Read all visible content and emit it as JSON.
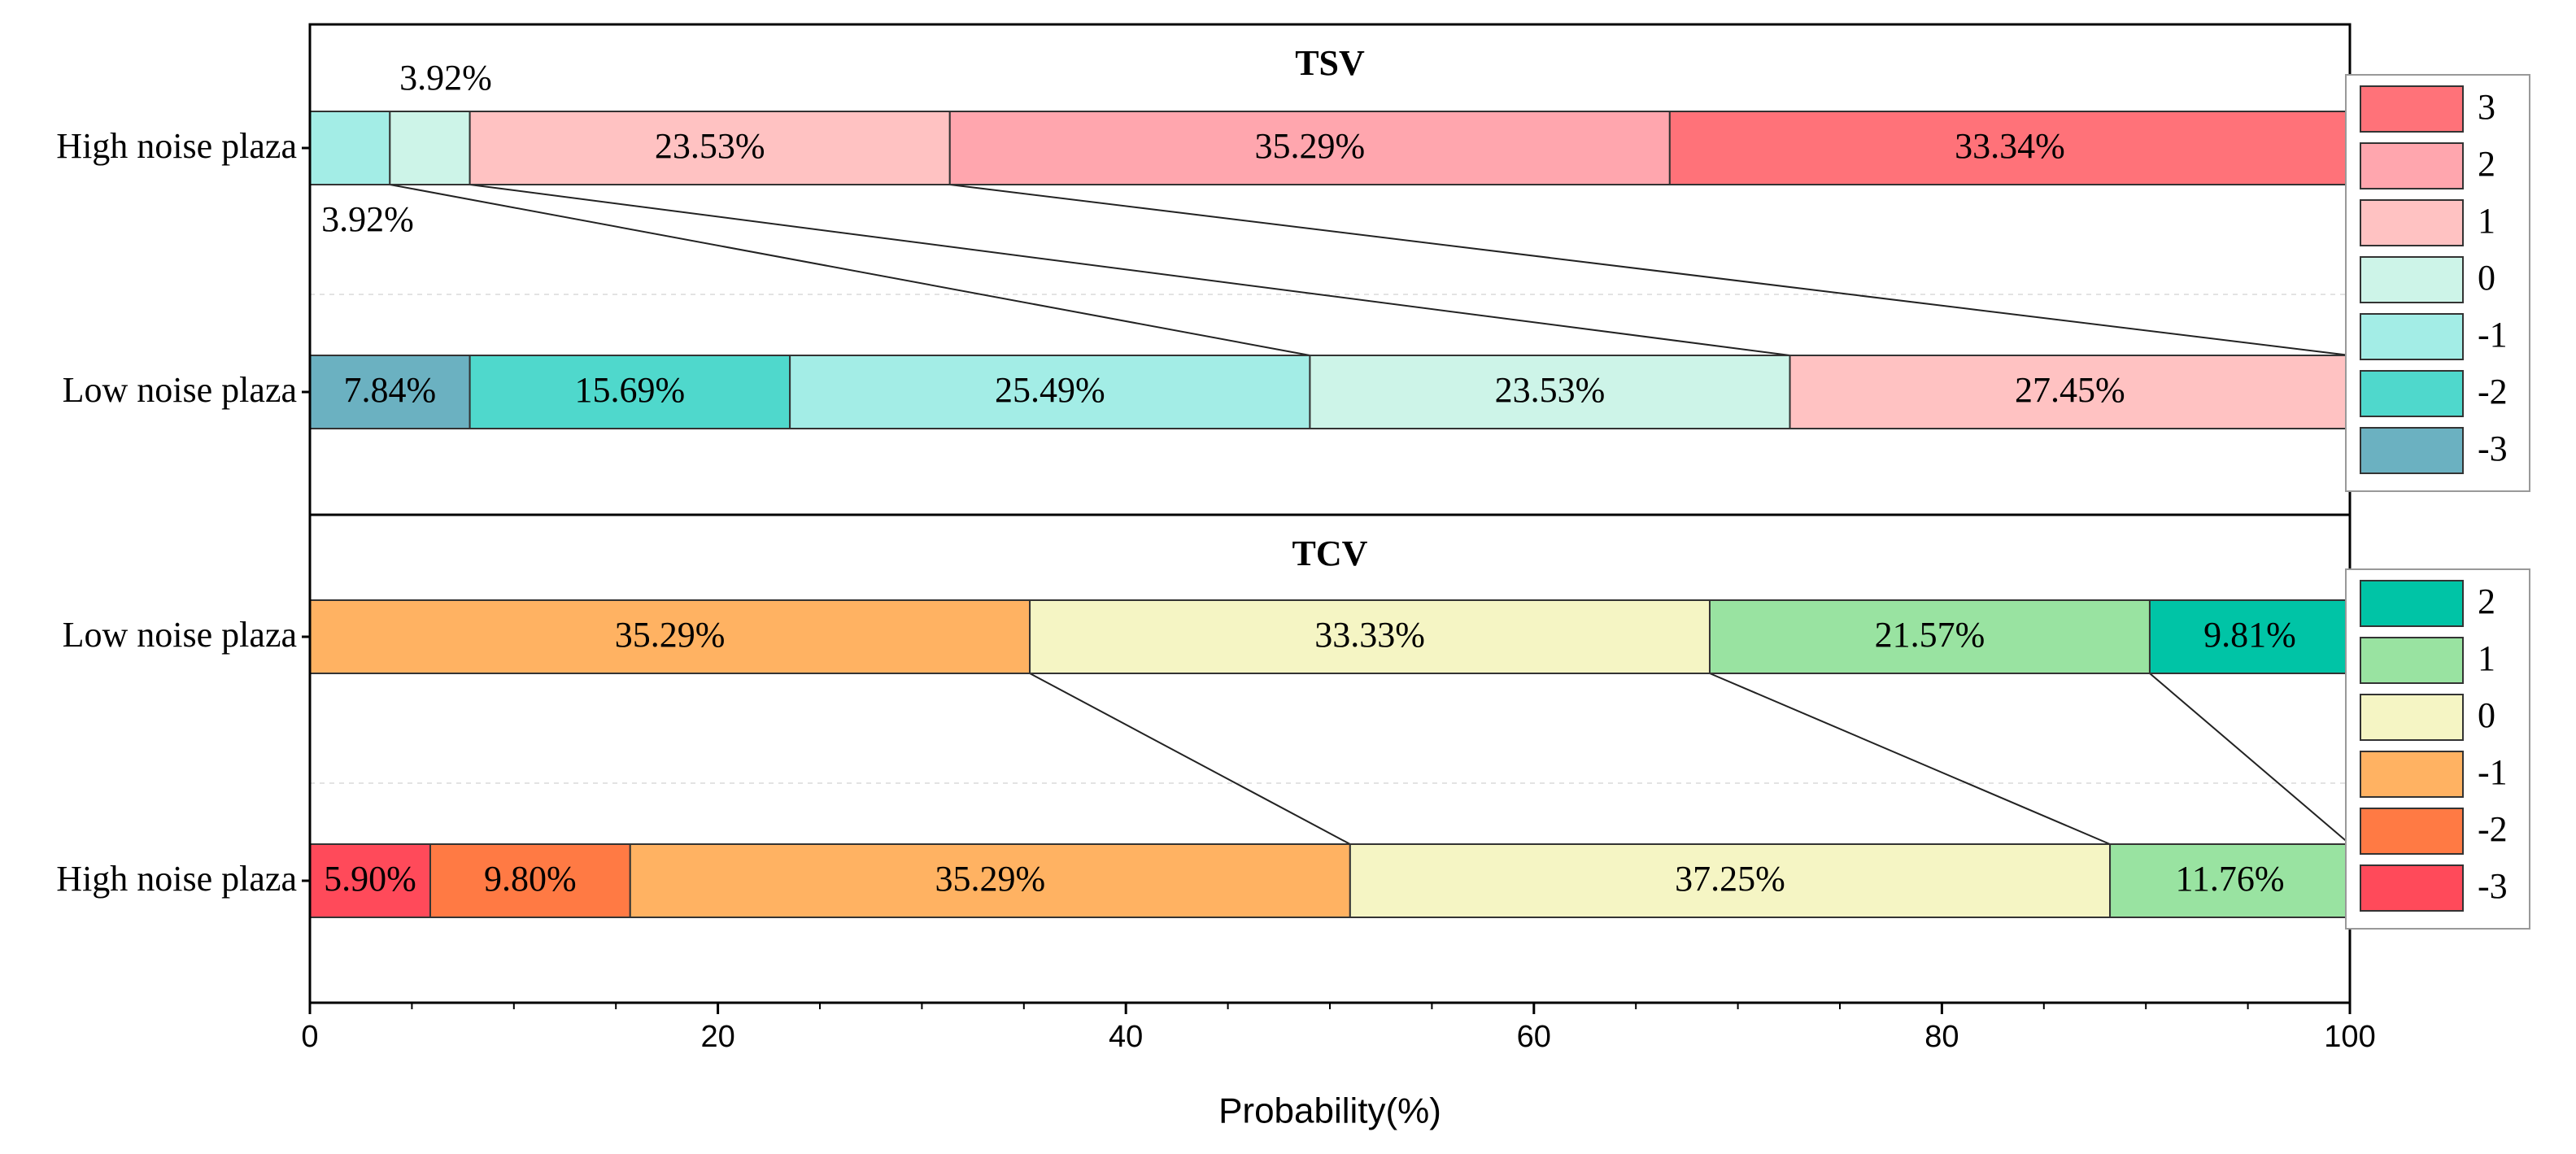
{
  "chart_data": {
    "type": "stacked-horizontal-bar",
    "xlabel": "Probability(%)",
    "xlim": [
      0,
      100
    ],
    "xticks": [
      "0",
      "20",
      "40",
      "60",
      "80",
      "100"
    ],
    "panels": [
      {
        "title": "TSV",
        "categories": [
          "High noise plaza",
          "Low noise plaza"
        ],
        "bars": [
          {
            "label": "High noise plaza",
            "segments": [
              {
                "level": "-1",
                "value": 3.92,
                "label": "",
                "color": "#a3ede6"
              },
              {
                "level": "0",
                "value": 3.92,
                "label": "",
                "color": "#cdf4e8"
              },
              {
                "level": "1",
                "value": 23.53,
                "label": "23.53%",
                "color": "#ffc2c2"
              },
              {
                "level": "2",
                "value": 35.29,
                "label": "35.29%",
                "color": "#ffa6ae"
              },
              {
                "level": "3",
                "value": 33.34,
                "label": "33.34%",
                "color": "#ff7279"
              }
            ]
          },
          {
            "label": "Low noise plaza",
            "segments": [
              {
                "level": "-3",
                "value": 7.84,
                "label": "7.84%",
                "color": "#6bb1c1"
              },
              {
                "level": "-2",
                "value": 15.69,
                "label": "15.69%",
                "color": "#4fd8cc"
              },
              {
                "level": "-1",
                "value": 25.49,
                "label": "25.49%",
                "color": "#a3ede6"
              },
              {
                "level": "0",
                "value": 23.53,
                "label": "23.53%",
                "color": "#cdf4e8"
              },
              {
                "level": "1",
                "value": 27.45,
                "label": "27.45%",
                "color": "#ffc2c2"
              }
            ]
          }
        ],
        "callouts": {
          "above": "3.92%",
          "below": "3.92%"
        },
        "legend": [
          {
            "label": "3",
            "color": "#ff7279"
          },
          {
            "label": "2",
            "color": "#ffa6ae"
          },
          {
            "label": "1",
            "color": "#ffc2c2"
          },
          {
            "label": "0",
            "color": "#cdf4e8"
          },
          {
            "label": "-1",
            "color": "#a3ede6"
          },
          {
            "label": "-2",
            "color": "#4fd8cc"
          },
          {
            "label": "-3",
            "color": "#6bb1c1"
          }
        ]
      },
      {
        "title": "TCV",
        "categories": [
          "Low noise plaza",
          "High noise plaza"
        ],
        "bars": [
          {
            "label": "Low noise plaza",
            "segments": [
              {
                "level": "-1",
                "value": 35.29,
                "label": "35.29%",
                "color": "#ffb262"
              },
              {
                "level": "0",
                "value": 33.33,
                "label": "33.33%",
                "color": "#f5f5c4"
              },
              {
                "level": "1",
                "value": 21.57,
                "label": "21.57%",
                "color": "#99e3a1"
              },
              {
                "level": "2",
                "value": 9.81,
                "label": "9.81%",
                "color": "#00c4a6"
              }
            ]
          },
          {
            "label": "High noise plaza",
            "segments": [
              {
                "level": "-3",
                "value": 5.9,
                "label": "5.90%",
                "color": "#ff4a5a"
              },
              {
                "level": "-2",
                "value": 9.8,
                "label": "9.80%",
                "color": "#ff7a44"
              },
              {
                "level": "-1",
                "value": 35.29,
                "label": "35.29%",
                "color": "#ffb262"
              },
              {
                "level": "0",
                "value": 37.25,
                "label": "37.25%",
                "color": "#f5f5c4"
              },
              {
                "level": "1",
                "value": 11.76,
                "label": "11.76%",
                "color": "#99e3a1"
              }
            ]
          }
        ],
        "legend": [
          {
            "label": "2",
            "color": "#00c4a6"
          },
          {
            "label": "1",
            "color": "#99e3a1"
          },
          {
            "label": "0",
            "color": "#f5f5c4"
          },
          {
            "label": "-1",
            "color": "#ffb262"
          },
          {
            "label": "-2",
            "color": "#ff7a44"
          },
          {
            "label": "-3",
            "color": "#ff4a5a"
          }
        ]
      }
    ]
  }
}
